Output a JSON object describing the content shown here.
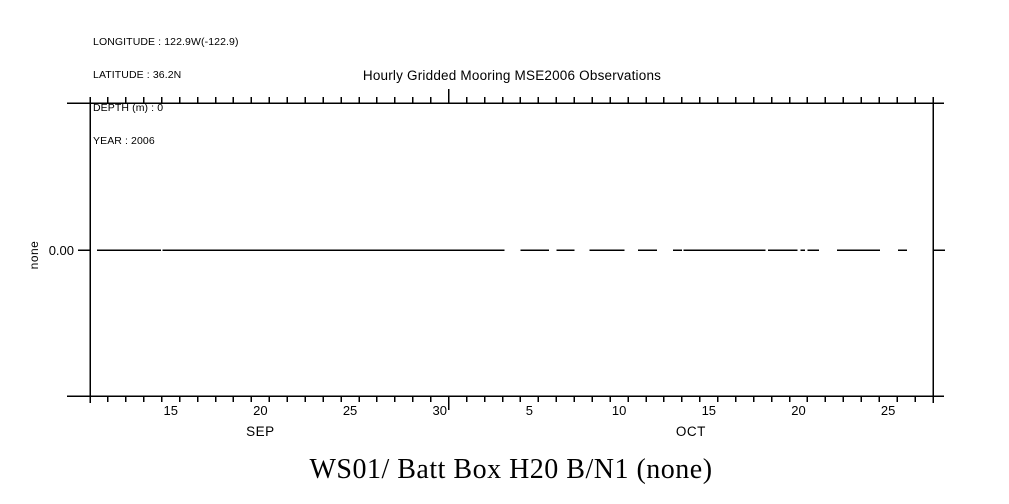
{
  "meta": {
    "lines": [
      "LONGITUDE : 122.9W(-122.9)",
      "LATITUDE : 36.2N",
      "DEPTH (m) : 0",
      "YEAR : 2006"
    ]
  },
  "chart_data": {
    "type": "line",
    "title": "Hourly Gridded Mooring MSE2006 Observations",
    "bottom_title": "WS01/ Batt Box H20 B/N1 (none)",
    "ylabel": "none",
    "y_tick_label": "0.00",
    "y_tick_value": 0.0,
    "grid": false,
    "legend": "none",
    "colors": {
      "foreground": "#000000",
      "background": "#ffffff"
    },
    "x_axis": {
      "unit": "serial day (Sep n = n, Oct n = 30 + n), year 2006",
      "range": [
        11,
        58
      ],
      "minor_tick_every_days": 1,
      "month_boundary_days": [
        31
      ],
      "day_labels": [
        {
          "day": 15,
          "label": "15"
        },
        {
          "day": 20,
          "label": "20"
        },
        {
          "day": 25,
          "label": "25"
        },
        {
          "day": 30,
          "label": "30"
        },
        {
          "day": 35,
          "label": "5"
        },
        {
          "day": 40,
          "label": "10"
        },
        {
          "day": 45,
          "label": "15"
        },
        {
          "day": 50,
          "label": "20"
        },
        {
          "day": 55,
          "label": "25"
        }
      ],
      "month_labels": [
        {
          "label": "SEP",
          "center_day": 20.5
        },
        {
          "label": "OCT",
          "center_day": 44.5
        }
      ]
    },
    "y_axis": {
      "ticks": [
        {
          "value": 0.0,
          "label": "0.00"
        }
      ]
    },
    "series": [
      {
        "name": "WS01 Batt Box H20 B/N1",
        "value": 0.0,
        "segments_days": [
          [
            11.4,
            14.95
          ],
          [
            15.05,
            34.1
          ],
          [
            35.0,
            36.6
          ],
          [
            37.0,
            38.0
          ],
          [
            38.85,
            40.8
          ],
          [
            41.55,
            42.6
          ],
          [
            43.5,
            44.0
          ],
          [
            44.1,
            48.65
          ],
          [
            48.8,
            50.45
          ],
          [
            50.6,
            50.85
          ],
          [
            51.0,
            51.65
          ],
          [
            52.65,
            55.05
          ],
          [
            56.05,
            56.55
          ]
        ]
      }
    ]
  }
}
